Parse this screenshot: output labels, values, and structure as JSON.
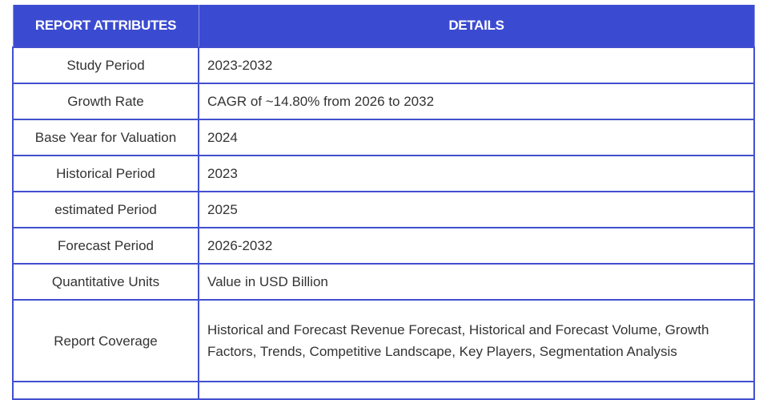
{
  "table": {
    "headers": [
      "REPORT ATTRIBUTES",
      "DETAILS"
    ],
    "rows": [
      {
        "attribute": "Study Period",
        "details": "2023-2032"
      },
      {
        "attribute": "Growth Rate",
        "details": "CAGR of ~14.80% from 2026 to 2032"
      },
      {
        "attribute": "Base Year for Valuation",
        "details": "2024"
      },
      {
        "attribute": "Historical Period",
        "details": "2023"
      },
      {
        "attribute": "estimated Period",
        "details": "2025"
      },
      {
        "attribute": "Forecast Period",
        "details": "2026-2032"
      },
      {
        "attribute": "Quantitative Units",
        "details": "Value in USD Billion"
      },
      {
        "attribute": "Report Coverage",
        "details": "Historical and Forecast Revenue Forecast, Historical and Forecast Volume, Growth Factors, Trends, Competitive Landscape, Key Players, Segmentation Analysis"
      }
    ]
  },
  "colors": {
    "header_bg": "#3b4bd1",
    "border": "#4250cf",
    "text": "#333333"
  }
}
